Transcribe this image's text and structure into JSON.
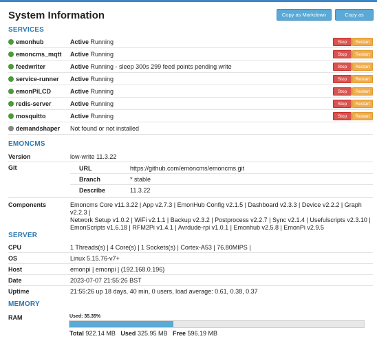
{
  "header": {
    "title": "System Information",
    "copy_markdown_label": "Copy as Markdown",
    "copy_text_label": "Copy as Text"
  },
  "colors": {
    "accent": "#2f78b0",
    "active_dot": "#4c9a3a",
    "inactive_dot": "#888888",
    "stop": "#d9534f",
    "restart": "#f0ad4e"
  },
  "services": {
    "title": "SERVICES",
    "stop_label": "Stop",
    "restart_label": "Restart",
    "items": [
      {
        "name": "emonhub",
        "state": "Active",
        "detail": "Running",
        "active": true
      },
      {
        "name": "emoncms_mqtt",
        "state": "Active",
        "detail": "Running",
        "active": true
      },
      {
        "name": "feedwriter",
        "state": "Active",
        "detail": "Running - sleep 300s 299 feed points pending write",
        "active": true
      },
      {
        "name": "service-runner",
        "state": "Active",
        "detail": "Running",
        "active": true
      },
      {
        "name": "emonPiLCD",
        "state": "Active",
        "detail": "Running",
        "active": true
      },
      {
        "name": "redis-server",
        "state": "Active",
        "detail": "Running",
        "active": true
      },
      {
        "name": "mosquitto",
        "state": "Active",
        "detail": "Running",
        "active": true
      },
      {
        "name": "demandshaper",
        "state": "",
        "detail": "Not found or not installed",
        "active": false
      }
    ]
  },
  "emoncms": {
    "title": "EMONCMS",
    "version_label": "Version",
    "version": "low-write 11.3.22",
    "git_label": "Git",
    "git": {
      "url_label": "URL",
      "url": "https://github.com/emoncms/emoncms.git",
      "branch_label": "Branch",
      "branch": "* stable",
      "describe_label": "Describe",
      "describe": "11.3.22"
    },
    "components_label": "Components",
    "components_line1": "Emoncms Core v11.3.22 | App v2.7.3 | EmonHub Config v2.1.5 | Dashboard v2.3.3 | Device v2.2.2 | Graph v2.2.3 |",
    "components_line2": "Network Setup v1.0.2 | WiFi v2.1.1 | Backup v2.3.2 | Postprocess v2.2.7 | Sync v2.1.4 | Usefulscripts v2.3.10 |",
    "components_line3": "EmonScripts v1.6.18 | RFM2Pi v1.4.1 | Avrdude-rpi v1.0.1 | Emonhub v2.5.8 | EmonPi v2.9.5"
  },
  "server": {
    "title": "SERVER",
    "cpu_label": "CPU",
    "cpu": "1 Threads(s) | 4 Core(s) | 1 Sockets(s) | Cortex-A53 | 76.80MIPS |",
    "os_label": "OS",
    "os": "Linux 5.15.76-v7+",
    "host_label": "Host",
    "host": "emonpi | emonpi | (192.168.0.196)",
    "date_label": "Date",
    "date": "2023-07-07 21:55:26 BST",
    "uptime_label": "Uptime",
    "uptime": "21:55:26 up 18 days, 40 min, 0 users, load average: 0.61, 0.38, 0.37"
  },
  "memory": {
    "title": "MEMORY",
    "ram_label": "RAM",
    "used_text": "Used: 35.35%",
    "used_percent": 35.35,
    "total_label": "Total",
    "total": "922.14 MB",
    "used_label": "Used",
    "used": "325.95 MB",
    "free_label": "Free",
    "free": "596.19 MB"
  }
}
